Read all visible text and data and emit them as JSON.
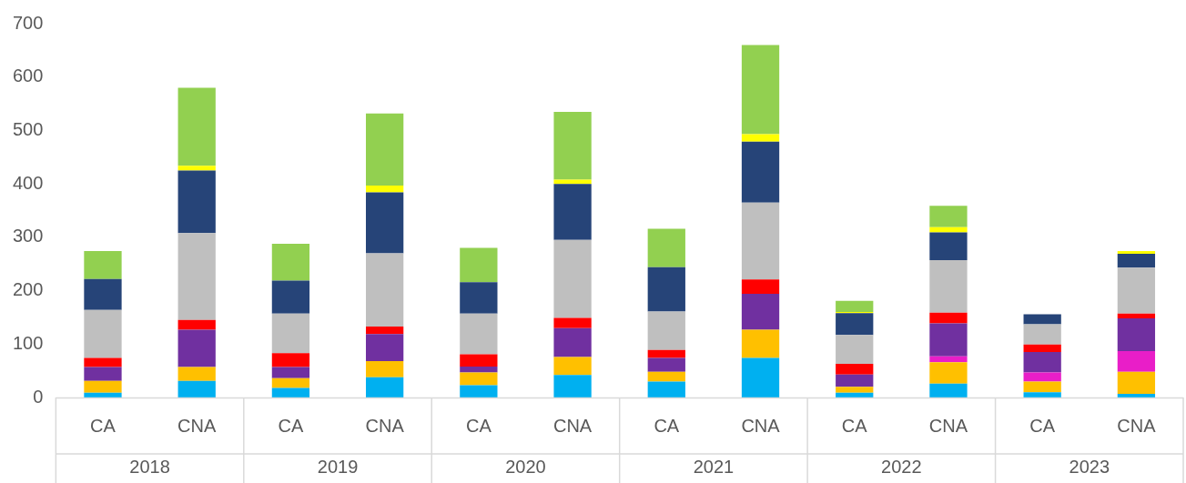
{
  "chart_data": {
    "type": "bar",
    "stacked": true,
    "categories": [
      "CA",
      "CNA",
      "CA",
      "CNA",
      "CA",
      "CNA",
      "CA",
      "CNA",
      "CA",
      "CNA",
      "CA",
      "CNA"
    ],
    "series": [
      {
        "color": "#00b0f0",
        "values": [
          9,
          31,
          18,
          38,
          23,
          42,
          30,
          74,
          9,
          26,
          10,
          7
        ]
      },
      {
        "color": "#ffc000",
        "values": [
          22,
          26,
          18,
          30,
          24,
          34,
          18,
          53,
          11,
          40,
          20,
          41
        ]
      },
      {
        "color": "#e91ec8",
        "values": [
          0,
          0,
          0,
          0,
          0,
          0,
          0,
          0,
          0,
          11,
          17,
          39
        ]
      },
      {
        "color": "#7030a0",
        "values": [
          26,
          70,
          21,
          51,
          11,
          54,
          26,
          67,
          23,
          62,
          38,
          61
        ]
      },
      {
        "color": "#ff0000",
        "values": [
          17,
          18,
          26,
          14,
          23,
          19,
          15,
          27,
          20,
          20,
          14,
          9
        ]
      },
      {
        "color": "#bfbfbf",
        "values": [
          90,
          163,
          74,
          137,
          76,
          146,
          72,
          144,
          54,
          98,
          38,
          86
        ]
      },
      {
        "color": "#264478",
        "values": [
          58,
          117,
          62,
          114,
          59,
          105,
          83,
          114,
          41,
          52,
          19,
          26
        ]
      },
      {
        "color": "#ffff00",
        "values": [
          0,
          9,
          0,
          13,
          0,
          8,
          0,
          14,
          2,
          10,
          0,
          5
        ]
      },
      {
        "color": "#92d050",
        "values": [
          52,
          146,
          69,
          135,
          64,
          127,
          72,
          167,
          21,
          40,
          0,
          0
        ]
      }
    ],
    "ylim": [
      0,
      700
    ],
    "yticks": [
      0,
      100,
      200,
      300,
      400,
      500,
      600,
      700
    ],
    "grid": false,
    "legend": false,
    "annotations": [
      "2018",
      "2019",
      "2020",
      "2021",
      "2022",
      "2023"
    ]
  }
}
